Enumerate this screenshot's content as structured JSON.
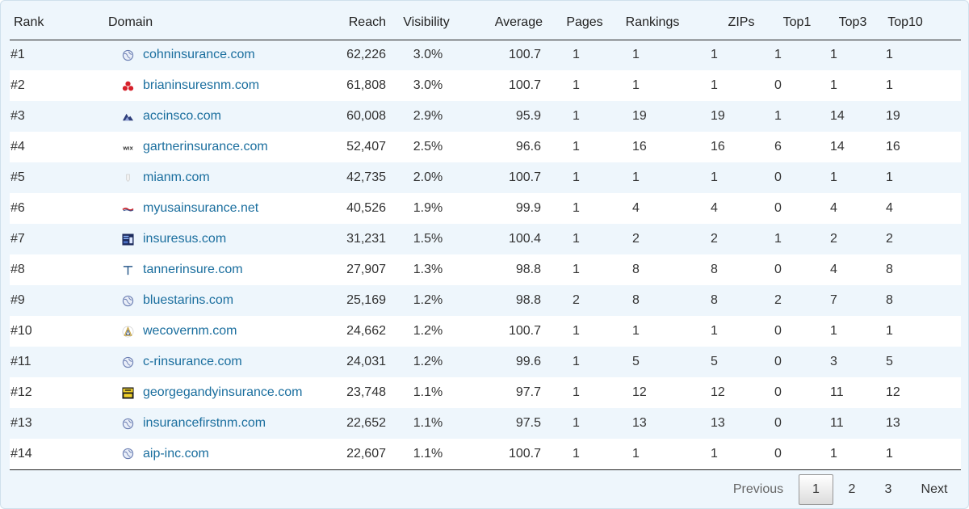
{
  "table": {
    "headers": {
      "rank": "Rank",
      "domain": "Domain",
      "reach": "Reach",
      "visibility": "Visibility",
      "average": "Average",
      "pages": "Pages",
      "rankings": "Rankings",
      "zips": "ZIPs",
      "top1": "Top1",
      "top3": "Top3",
      "top10": "Top10"
    },
    "rows": [
      {
        "rank": "#1",
        "domain": "cohninsurance.com",
        "icon": "globe-icon",
        "reach": "62,226",
        "visibility": "3.0%",
        "average": "100.7",
        "pages": "1",
        "rankings": "1",
        "zips": "1",
        "top1": "1",
        "top3": "1",
        "top10": "1"
      },
      {
        "rank": "#2",
        "domain": "brianinsuresnm.com",
        "icon": "state-farm-logo-icon",
        "reach": "61,808",
        "visibility": "3.0%",
        "average": "100.7",
        "pages": "1",
        "rankings": "1",
        "zips": "1",
        "top1": "0",
        "top3": "1",
        "top10": "1"
      },
      {
        "rank": "#3",
        "domain": "accinsco.com",
        "icon": "mountain-logo-icon",
        "reach": "60,008",
        "visibility": "2.9%",
        "average": "95.9",
        "pages": "1",
        "rankings": "19",
        "zips": "19",
        "top1": "1",
        "top3": "14",
        "top10": "19"
      },
      {
        "rank": "#4",
        "domain": "gartnerinsurance.com",
        "icon": "wix-logo-icon",
        "reach": "52,407",
        "visibility": "2.5%",
        "average": "96.6",
        "pages": "1",
        "rankings": "16",
        "zips": "16",
        "top1": "6",
        "top3": "14",
        "top10": "16"
      },
      {
        "rank": "#5",
        "domain": "mianm.com",
        "icon": "shield-logo-icon",
        "reach": "42,735",
        "visibility": "2.0%",
        "average": "100.7",
        "pages": "1",
        "rankings": "1",
        "zips": "1",
        "top1": "0",
        "top3": "1",
        "top10": "1"
      },
      {
        "rank": "#6",
        "domain": "myusainsurance.net",
        "icon": "flag-swoosh-icon",
        "reach": "40,526",
        "visibility": "1.9%",
        "average": "99.9",
        "pages": "1",
        "rankings": "4",
        "zips": "4",
        "top1": "0",
        "top3": "4",
        "top10": "4"
      },
      {
        "rank": "#7",
        "domain": "insuresus.com",
        "icon": "site-thumbnail-icon",
        "reach": "31,231",
        "visibility": "1.5%",
        "average": "100.4",
        "pages": "1",
        "rankings": "2",
        "zips": "2",
        "top1": "1",
        "top3": "2",
        "top10": "2"
      },
      {
        "rank": "#8",
        "domain": "tannerinsure.com",
        "icon": "letter-t-icon",
        "reach": "27,907",
        "visibility": "1.3%",
        "average": "98.8",
        "pages": "1",
        "rankings": "8",
        "zips": "8",
        "top1": "0",
        "top3": "4",
        "top10": "8"
      },
      {
        "rank": "#9",
        "domain": "bluestarins.com",
        "icon": "globe-icon",
        "reach": "25,169",
        "visibility": "1.2%",
        "average": "98.8",
        "pages": "2",
        "rankings": "8",
        "zips": "8",
        "top1": "2",
        "top3": "7",
        "top10": "8"
      },
      {
        "rank": "#10",
        "domain": "wecovernm.com",
        "icon": "triangle-logo-icon",
        "reach": "24,662",
        "visibility": "1.2%",
        "average": "100.7",
        "pages": "1",
        "rankings": "1",
        "zips": "1",
        "top1": "0",
        "top3": "1",
        "top10": "1"
      },
      {
        "rank": "#11",
        "domain": "c-rinsurance.com",
        "icon": "globe-icon",
        "reach": "24,031",
        "visibility": "1.2%",
        "average": "99.6",
        "pages": "1",
        "rankings": "5",
        "zips": "5",
        "top1": "0",
        "top3": "3",
        "top10": "5"
      },
      {
        "rank": "#12",
        "domain": "georgegandyinsurance.com",
        "icon": "yellow-badge-logo-icon",
        "reach": "23,748",
        "visibility": "1.1%",
        "average": "97.7",
        "pages": "1",
        "rankings": "12",
        "zips": "12",
        "top1": "0",
        "top3": "11",
        "top10": "12"
      },
      {
        "rank": "#13",
        "domain": "insurancefirstnm.com",
        "icon": "globe-icon",
        "reach": "22,652",
        "visibility": "1.1%",
        "average": "97.5",
        "pages": "1",
        "rankings": "13",
        "zips": "13",
        "top1": "0",
        "top3": "11",
        "top10": "13"
      },
      {
        "rank": "#14",
        "domain": "aip-inc.com",
        "icon": "globe-icon",
        "reach": "22,607",
        "visibility": "1.1%",
        "average": "100.7",
        "pages": "1",
        "rankings": "1",
        "zips": "1",
        "top1": "0",
        "top3": "1",
        "top10": "1"
      }
    ]
  },
  "pagination": {
    "previous": "Previous",
    "pages": [
      "1",
      "2",
      "3"
    ],
    "current_page": "1",
    "next": "Next"
  },
  "colors": {
    "link": "#1a6e9e",
    "row_alt": "#eef6fc",
    "panel_border": "#cfe0ec"
  }
}
